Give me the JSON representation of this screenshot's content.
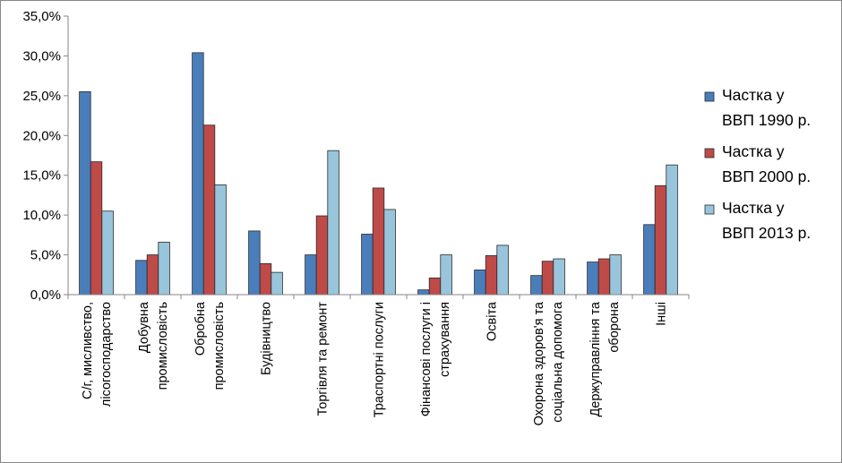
{
  "chart_data": {
    "type": "bar",
    "title": "",
    "xlabel": "",
    "ylabel": "",
    "ylim": [
      0,
      35
    ],
    "yticks": [
      "0,0%",
      "5,0%",
      "10,0%",
      "15,0%",
      "20,0%",
      "25,0%",
      "30,0%",
      "35,0%"
    ],
    "grid": false,
    "legend_position": "right",
    "categories": [
      [
        "С/г, мисливство,",
        "лісогосподарство"
      ],
      [
        "Добувна",
        "промисловість"
      ],
      [
        "Обробна",
        "промисловість"
      ],
      [
        "Будівництво"
      ],
      [
        "Торгівля та ремонт"
      ],
      [
        "Траспортні послуги"
      ],
      [
        "Фінансові послуги і",
        "страхування"
      ],
      [
        "Освіта"
      ],
      [
        "Охорона здоров'я та",
        "соціальна допомога"
      ],
      [
        "Держуправління та",
        "оборона"
      ],
      [
        "Інші"
      ]
    ],
    "series": [
      {
        "name": "Частка у ВВП 1990 р.",
        "legend_lines": [
          "Частка у",
          "ВВП 1990 р."
        ],
        "color": "#4a7ebb",
        "values": [
          25.5,
          4.3,
          30.4,
          8.0,
          5.0,
          7.6,
          0.6,
          3.1,
          2.4,
          4.1,
          8.8
        ]
      },
      {
        "name": "Частка у ВВП 2000 р.",
        "legend_lines": [
          "Частка у",
          "ВВП 2000 р."
        ],
        "color": "#be4b48",
        "values": [
          16.7,
          5.0,
          21.3,
          3.9,
          9.9,
          13.4,
          2.1,
          4.9,
          4.2,
          4.5,
          13.7
        ]
      },
      {
        "name": "Частка у ВВП 2013 р.",
        "legend_lines": [
          "Частка у",
          "ВВП 2013 р."
        ],
        "color": "#98c5dc",
        "values": [
          10.5,
          6.6,
          13.8,
          2.8,
          18.1,
          10.7,
          5.0,
          6.2,
          4.5,
          5.0,
          16.3
        ]
      }
    ]
  }
}
